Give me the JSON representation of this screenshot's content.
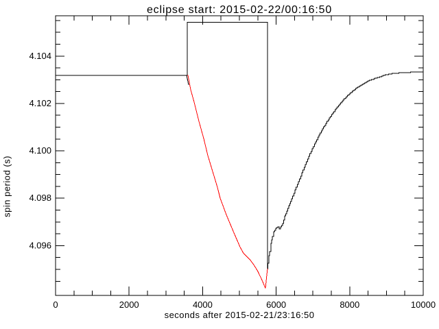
{
  "colors": {
    "background": "#ffffff",
    "axis": "#000000",
    "black_series": "#000000",
    "red_series": "#ff0000"
  },
  "chart_data": {
    "type": "line",
    "title": "eclipse start: 2015-02-22/00:16:50",
    "xlabel": "seconds after 2015-02-21/23:16:50",
    "ylabel": "spin period (s)",
    "xlim": [
      0,
      10000
    ],
    "ylim": [
      4.0939,
      4.1057
    ],
    "grid": false,
    "legend_position": "none",
    "x_major_ticks": [
      0,
      2000,
      4000,
      6000,
      8000,
      10000
    ],
    "x_tick_labels": [
      "0",
      "2000",
      "4000",
      "6000",
      "8000",
      "10000"
    ],
    "x_minor_step": 500,
    "y_major_ticks": [
      4.096,
      4.098,
      4.1,
      4.102,
      4.104
    ],
    "y_tick_labels": [
      "4.096",
      "4.098",
      "4.100",
      "4.102",
      "4.104"
    ],
    "y_major_step": 0.002,
    "y_minor_step": 0.0005,
    "series": [
      {
        "id": "series-pre-eclipse-gate",
        "name": "pre-eclipse level and eclipse gate (black)",
        "color": "#000000",
        "style": "line",
        "points": [
          [
            0,
            4.10319
          ],
          [
            3582,
            4.10319
          ],
          [
            3582,
            4.10542
          ],
          [
            5765,
            4.10542
          ],
          [
            5765,
            4.09504
          ]
        ]
      },
      {
        "id": "series-pre-dip-tick",
        "name": "small black descent at gate start",
        "color": "#000000",
        "style": "line",
        "points": [
          [
            3564,
            4.10319
          ],
          [
            3620,
            4.10278
          ]
        ]
      },
      {
        "id": "series-eclipse-dip",
        "name": "eclipse spin-down (red)",
        "color": "#ff0000",
        "style": "line",
        "points": [
          [
            3582,
            4.10319
          ],
          [
            3601,
            4.10319
          ],
          [
            3675,
            4.10258
          ],
          [
            3769,
            4.10206
          ],
          [
            3899,
            4.10125
          ],
          [
            4030,
            4.10052
          ],
          [
            4142,
            4.0998
          ],
          [
            4272,
            4.09913
          ],
          [
            4403,
            4.09846
          ],
          [
            4478,
            4.098
          ],
          [
            4646,
            4.0973
          ],
          [
            4832,
            4.09661
          ],
          [
            5019,
            4.09594
          ],
          [
            5112,
            4.09568
          ],
          [
            5205,
            4.09554
          ],
          [
            5299,
            4.09539
          ],
          [
            5392,
            4.09519
          ],
          [
            5485,
            4.09496
          ],
          [
            5578,
            4.09467
          ],
          [
            5653,
            4.09441
          ],
          [
            5709,
            4.0942
          ],
          [
            5746,
            4.09478
          ],
          [
            5765,
            4.09504
          ]
        ]
      },
      {
        "id": "series-recovery",
        "name": "post-eclipse recovery (black staircase)",
        "color": "#000000",
        "style": "steps",
        "points": [
          [
            5765,
            4.09504
          ],
          [
            5777,
            4.09525
          ],
          [
            5802,
            4.09557
          ],
          [
            5821,
            4.09574
          ],
          [
            5858,
            4.09609
          ],
          [
            5896,
            4.09638
          ],
          [
            5933,
            4.09658
          ],
          [
            5989,
            4.09672
          ],
          [
            6045,
            4.09678
          ],
          [
            6082,
            4.0967
          ],
          [
            6119,
            4.09678
          ],
          [
            6175,
            4.09693
          ],
          [
            6231,
            4.09725
          ],
          [
            6287,
            4.09745
          ],
          [
            6343,
            4.09768
          ],
          [
            6418,
            4.09797
          ],
          [
            6511,
            4.09835
          ],
          [
            6604,
            4.0987
          ],
          [
            6698,
            4.09907
          ],
          [
            6791,
            4.09942
          ],
          [
            6884,
            4.09977
          ],
          [
            6978,
            4.10009
          ],
          [
            7071,
            4.10038
          ],
          [
            7164,
            4.10067
          ],
          [
            7257,
            4.10093
          ],
          [
            7351,
            4.10116
          ],
          [
            7444,
            4.10139
          ],
          [
            7537,
            4.10159
          ],
          [
            7631,
            4.1018
          ],
          [
            7724,
            4.10197
          ],
          [
            7817,
            4.10214
          ],
          [
            7910,
            4.10229
          ],
          [
            8004,
            4.10243
          ],
          [
            8097,
            4.10255
          ],
          [
            8190,
            4.10267
          ],
          [
            8284,
            4.10275
          ],
          [
            8377,
            4.10284
          ],
          [
            8470,
            4.10293
          ],
          [
            8563,
            4.10299
          ],
          [
            8657,
            4.10304
          ],
          [
            8750,
            4.1031
          ],
          [
            8843,
            4.10313
          ],
          [
            8936,
            4.10319
          ],
          [
            9030,
            4.10322
          ],
          [
            9123,
            4.10325
          ],
          [
            9216,
            4.10328
          ],
          [
            9310,
            4.10328
          ],
          [
            9403,
            4.1033
          ],
          [
            9496,
            4.1033
          ],
          [
            9589,
            4.1033
          ],
          [
            9683,
            4.10333
          ],
          [
            9776,
            4.10333
          ],
          [
            9869,
            4.10333
          ],
          [
            10000,
            4.10333
          ]
        ]
      }
    ]
  }
}
